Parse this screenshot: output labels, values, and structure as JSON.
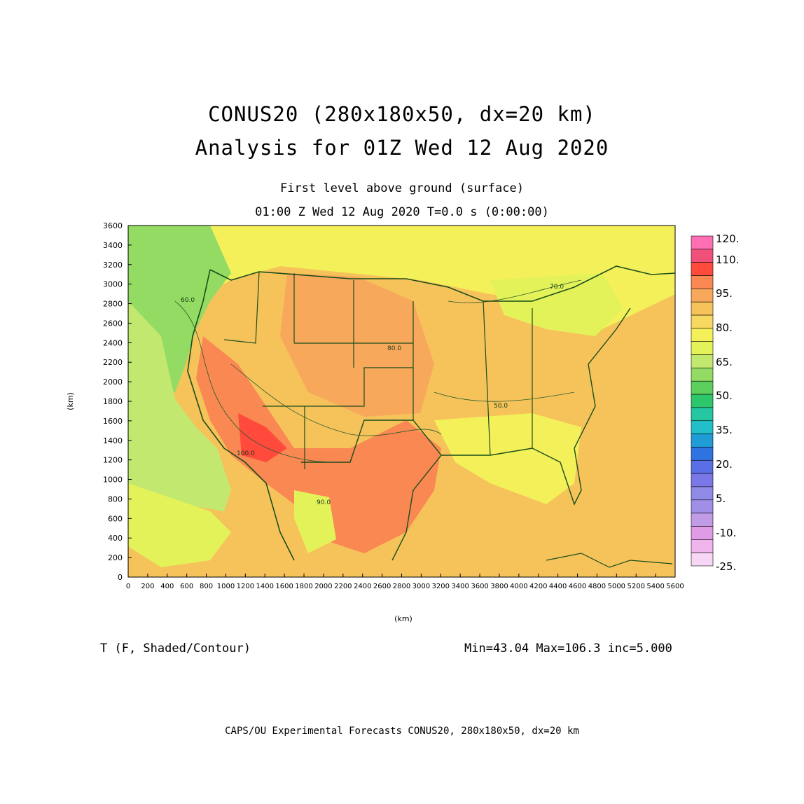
{
  "titles": {
    "line1": "CONUS20 (280x180x50, dx=20 km)",
    "line2": "Analysis for 01Z Wed 12 Aug 2020",
    "level": "First level above ground (surface)",
    "time": "01:00 Z Wed 12 Aug 2020    T=0.0 s (0:00:00)"
  },
  "variable_label": "T (F, Shaded/Contour)",
  "stats": "Min=43.04 Max=106.3 inc=5.000",
  "footer": "CAPS/OU Experimental Forecasts  CONUS20, 280x180x50, dx=20 km",
  "axes": {
    "x_label": "(km)",
    "y_label": "(km)",
    "x_ticks": [
      "0",
      "200",
      "400",
      "600",
      "800",
      "1000",
      "1200",
      "1400",
      "1600",
      "1800",
      "2000",
      "2200",
      "2400",
      "2600",
      "2800",
      "3000",
      "3200",
      "3400",
      "3600",
      "3800",
      "4000",
      "4200",
      "4400",
      "4600",
      "4800",
      "5000",
      "5200",
      "5400",
      "5600"
    ],
    "y_ticks": [
      "0",
      "200",
      "400",
      "600",
      "800",
      "1000",
      "1200",
      "1400",
      "1600",
      "1800",
      "2000",
      "2200",
      "2400",
      "2600",
      "2800",
      "3000",
      "3200",
      "3400",
      "3600"
    ]
  },
  "colorbar": {
    "labels": [
      "120.",
      "110.",
      "95.",
      "80.",
      "65.",
      "50.",
      "35.",
      "20.",
      "5.",
      "-10.",
      "-25."
    ],
    "colors": [
      "#ff6fb4",
      "#f0507a",
      "#ff4a3c",
      "#f98852",
      "#f8a85a",
      "#f6c35b",
      "#f7d860",
      "#f4f05a",
      "#e4f25a",
      "#c2e870",
      "#93db63",
      "#5ccf5c",
      "#2ec66a",
      "#25c6a2",
      "#22bfc9",
      "#1f9bd6",
      "#2f73e0",
      "#5a6ee6",
      "#7a78e6",
      "#8f8ae6",
      "#a18ee6",
      "#c29be6",
      "#e09be6",
      "#f0b4ec",
      "#f8d6f6"
    ]
  },
  "contour_labels": [
    "60.0",
    "70.0",
    "80.0",
    "90.0",
    "100.0",
    "50.0"
  ],
  "chart_data": {
    "type": "heatmap",
    "title": "CONUS20 (280x180x50, dx=20 km)",
    "xlabel": "(km)",
    "ylabel": "(km)",
    "xlim": [
      0,
      5600
    ],
    "ylim": [
      0,
      3600
    ],
    "variable": "T (F, Shaded/Contour)",
    "min": 43.04,
    "max": 106.3,
    "inc": 5.0,
    "colorbar_range": [
      -25,
      120
    ]
  }
}
